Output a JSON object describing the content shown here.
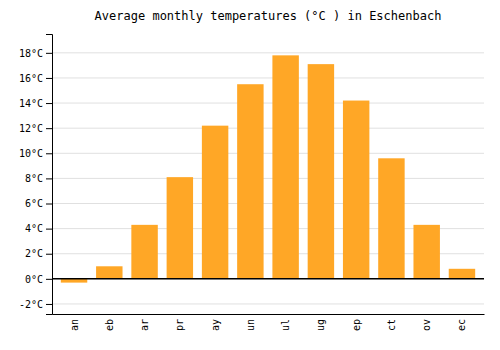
{
  "chart_data": {
    "type": "bar",
    "title": "Average monthly temperatures (°C ) in Eschenbach",
    "categories": [
      "an",
      "eb",
      "ar",
      "pr",
      "ay",
      "un",
      "ul",
      "ug",
      "ep",
      "ct",
      "ov",
      "ec"
    ],
    "values": [
      -0.3,
      1.0,
      4.3,
      8.1,
      12.2,
      15.5,
      17.8,
      17.1,
      14.2,
      9.6,
      4.3,
      0.8
    ],
    "color": "#FFA726",
    "ylim": [
      -2.8,
      19.5
    ],
    "yticks": [
      {
        "value": -2,
        "label": "-2°C"
      },
      {
        "value": 0,
        "label": "0°C"
      },
      {
        "value": 2,
        "label": "2°C"
      },
      {
        "value": 4,
        "label": "4°C"
      },
      {
        "value": 6,
        "label": "6°C"
      },
      {
        "value": 8,
        "label": "8°C"
      },
      {
        "value": 10,
        "label": "10°C"
      },
      {
        "value": 12,
        "label": "12°C"
      },
      {
        "value": 14,
        "label": "14°C"
      },
      {
        "value": 16,
        "label": "16°C"
      },
      {
        "value": 18,
        "label": "18°C"
      }
    ],
    "grid": true
  }
}
